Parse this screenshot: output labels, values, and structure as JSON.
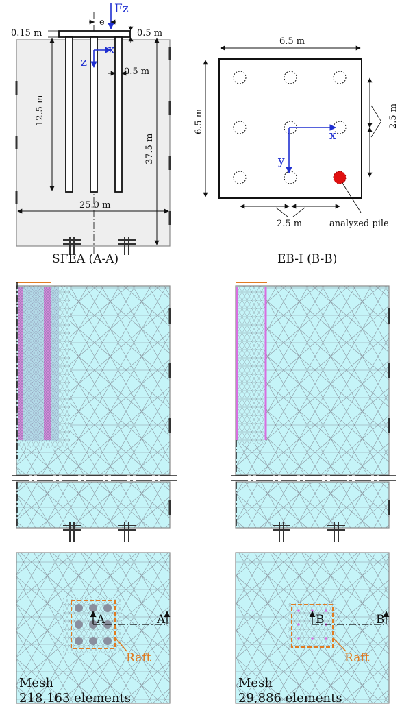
{
  "colors": {
    "soil_fill": "#eeeeee",
    "mesh_fill": "#c5f4f8",
    "mesh_line": "#8a96a0",
    "border": "#888888",
    "pile_pink": "#d86ee0",
    "axis_blue": "#1f2fd1",
    "raft_orange": "#e07b22",
    "analyzed_pile_red": "#e01010"
  },
  "elevation": {
    "load_label": "Fz",
    "eccentricity_label": "e",
    "axis_x_label": "x",
    "axis_z_label": "z",
    "raft_thickness": "0.15 m",
    "raft_overhang": "0.5 m",
    "pile_diameter": "0.5 m",
    "pile_length": "12.5 m",
    "domain_depth": "37.5 m",
    "domain_width": "25.0 m"
  },
  "plan": {
    "raft_size_top": "6.5 m",
    "raft_size_left": "6.5 m",
    "spacing_right": "2.5 m",
    "spacing_bottom": "2.5 m",
    "axis_x_label": "x",
    "axis_y_label": "y",
    "analyzed_label": "analyzed pile"
  },
  "mesh_sfea": {
    "title": "SFEA (A-A)",
    "section_mark": "A",
    "raft_label": "Raft",
    "mesh_label": "Mesh",
    "element_count": "218,163 elements"
  },
  "mesh_ebi": {
    "title": "EB-I (B-B)",
    "section_mark": "B",
    "raft_label": "Raft",
    "mesh_label": "Mesh",
    "element_count": "29,886 elements"
  }
}
